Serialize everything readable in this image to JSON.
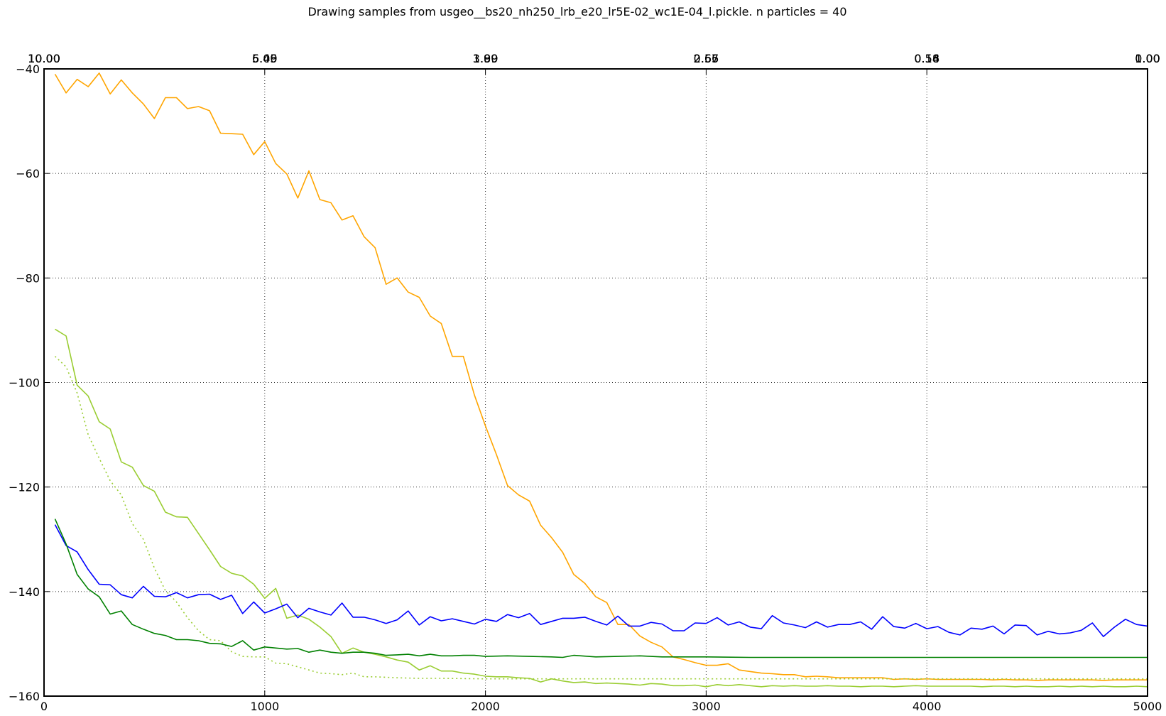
{
  "chart_data": {
    "type": "line",
    "title": "Drawing samples from usgeo__bs20_nh250_lrb_e20_lr5E-02_wc1E-04_l.pickle. n particles = 40",
    "xlabel": "",
    "ylabel": "",
    "xlim": [
      0,
      5000
    ],
    "ylim": [
      -160,
      -40
    ],
    "grid": true,
    "grid_style": "dotted",
    "x_ticks": [
      0,
      1000,
      2000,
      3000,
      4000,
      5000
    ],
    "y_ticks": [
      -160,
      -140,
      -120,
      -100,
      -80,
      -60,
      -40
    ],
    "top_axis": {
      "ticks": [
        {
          "x": 0,
          "labels": [
            "10.00",
            "10.00",
            "10.00"
          ]
        },
        {
          "x": 1000,
          "labels": [
            "5.49",
            "5.45",
            "6.00"
          ]
        },
        {
          "x": 2000,
          "labels": [
            "1.89",
            "1.99",
            "3.00"
          ]
        },
        {
          "x": 3000,
          "labels": [
            "2.67",
            "2.65",
            "0.56"
          ]
        },
        {
          "x": 4000,
          "labels": [
            "0.58",
            "0.56",
            "0.14"
          ]
        },
        {
          "x": 5000,
          "labels": [
            "1.00",
            "1.00",
            "0.00"
          ]
        }
      ]
    },
    "series": [
      {
        "name": "",
        "color": "#ffa500",
        "style": "solid",
        "x": [
          50,
          100,
          150,
          200,
          250,
          300,
          350,
          400,
          450,
          500,
          550,
          600,
          650,
          700,
          750,
          800,
          850,
          900,
          950,
          1000,
          1050,
          1100,
          1150,
          1200,
          1250,
          1300,
          1350,
          1400,
          1450,
          1500,
          1550,
          1600,
          1650,
          1700,
          1750,
          1800,
          1850,
          1900,
          1950,
          2000,
          2050,
          2100,
          2150,
          2200,
          2250,
          2300,
          2350,
          2400,
          2450,
          2500,
          2550,
          2600,
          2650,
          2700,
          2750,
          2800,
          2850,
          2900,
          2950,
          3000,
          3050,
          3100,
          3150,
          3200,
          3250,
          3300,
          3350,
          3400,
          3450,
          3500,
          3550,
          3600,
          3650,
          3700,
          3750,
          3800,
          3850,
          3900,
          3950,
          4000,
          4050,
          4100,
          4150,
          4200,
          4250,
          4300,
          4350,
          4400,
          4450,
          4500,
          4550,
          4600,
          4650,
          4700,
          4750,
          4800,
          4850,
          4900,
          4950,
          5000
        ],
        "y": [
          -41,
          -44.6,
          -42,
          -43.4,
          -40.8,
          -44.8,
          -42.1,
          -44.6,
          -46.7,
          -49.5,
          -45.5,
          -45.5,
          -47.6,
          -47.2,
          -48,
          -52.3,
          -52.4,
          -52.5,
          -56.4,
          -53.9,
          -58.1,
          -60.1,
          -64.7,
          -59.5,
          -65,
          -65.6,
          -68.9,
          -68.1,
          -72.1,
          -74.2,
          -81.2,
          -80,
          -82.7,
          -83.7,
          -87.3,
          -88.7,
          -95,
          -95,
          -102.4,
          -108.3,
          -113.8,
          -119.7,
          -121.5,
          -122.7,
          -127.3,
          -129.7,
          -132.5,
          -136.7,
          -138.4,
          -141,
          -142.1,
          -146.3,
          -146.3,
          -148.5,
          -149.7,
          -150.6,
          -152.5,
          -153,
          -153.6,
          -154.1,
          -154.1,
          -153.8,
          -155,
          -155.3,
          -155.6,
          -155.7,
          -155.9,
          -155.9,
          -156.3,
          -156.2,
          -156.3,
          -156.5,
          -156.5,
          -156.5,
          -156.5,
          -156.5,
          -156.8,
          -156.7,
          -156.8,
          -156.7,
          -156.8,
          -156.8,
          -156.8,
          -156.8,
          -156.8,
          -156.9,
          -156.8,
          -156.9,
          -156.9,
          -157,
          -156.9,
          -156.9,
          -156.9,
          -156.9,
          -156.9,
          -157,
          -156.9,
          -156.9,
          -156.9,
          -156.9
        ]
      },
      {
        "name": "",
        "color": "#9acd32",
        "style": "solid",
        "x": [
          50,
          100,
          150,
          200,
          250,
          300,
          350,
          400,
          450,
          500,
          550,
          600,
          650,
          700,
          750,
          800,
          850,
          900,
          950,
          1000,
          1050,
          1100,
          1150,
          1200,
          1250,
          1300,
          1350,
          1400,
          1450,
          1500,
          1550,
          1600,
          1650,
          1700,
          1750,
          1800,
          1850,
          1900,
          1950,
          2000,
          2050,
          2100,
          2150,
          2200,
          2250,
          2300,
          2350,
          2400,
          2450,
          2500,
          2550,
          2600,
          2650,
          2700,
          2750,
          2800,
          2850,
          2900,
          2950,
          3000,
          3050,
          3100,
          3150,
          3200,
          3250,
          3300,
          3350,
          3400,
          3450,
          3500,
          3550,
          3600,
          3650,
          3700,
          3750,
          3800,
          3850,
          3900,
          3950,
          4000,
          4050,
          4100,
          4150,
          4200,
          4250,
          4300,
          4350,
          4400,
          4450,
          4500,
          4550,
          4600,
          4650,
          4700,
          4750,
          4800,
          4850,
          4900,
          4950,
          5000
        ],
        "y": [
          -89.8,
          -91.1,
          -100.5,
          -102.6,
          -107.5,
          -108.9,
          -115.2,
          -116.2,
          -119.7,
          -120.8,
          -124.8,
          -125.7,
          -125.8,
          -128.9,
          -132,
          -135.2,
          -136.5,
          -137,
          -138.6,
          -141.3,
          -139.4,
          -145.1,
          -144.5,
          -145.3,
          -146.8,
          -148.6,
          -151.8,
          -150.8,
          -151.6,
          -152,
          -152.5,
          -153.1,
          -153.5,
          -155,
          -154.2,
          -155.2,
          -155.2,
          -155.6,
          -155.8,
          -156.2,
          -156.3,
          -156.3,
          -156.5,
          -156.6,
          -157.3,
          -156.7,
          -157.1,
          -157.4,
          -157.3,
          -157.6,
          -157.5,
          -157.6,
          -157.7,
          -157.9,
          -157.6,
          -157.7,
          -158,
          -158,
          -157.9,
          -158.2,
          -157.8,
          -158,
          -157.8,
          -158,
          -158.2,
          -158,
          -158.1,
          -158,
          -158.1,
          -158.1,
          -158,
          -158.1,
          -158.1,
          -158.2,
          -158.1,
          -158.1,
          -158.2,
          -158.1,
          -158,
          -158.1,
          -158.1,
          -158.1,
          -158.1,
          -158.1,
          -158.2,
          -158.1,
          -158.1,
          -158.2,
          -158.1,
          -158.2,
          -158.2,
          -158.1,
          -158.2,
          -158.1,
          -158.2,
          -158.1,
          -158.2,
          -158.2,
          -158.1,
          -158.2
        ]
      },
      {
        "name": "",
        "color": "#9acd32",
        "style": "dotted",
        "x": [
          50,
          100,
          150,
          200,
          250,
          300,
          350,
          400,
          450,
          500,
          550,
          600,
          650,
          700,
          750,
          800,
          850,
          900,
          950,
          1000,
          1050,
          1100,
          1150,
          1200,
          1250,
          1300,
          1350,
          1400,
          1450,
          1500,
          1600,
          1700,
          1800,
          2000,
          2200,
          2400,
          2600,
          2800,
          3000,
          3400,
          3800,
          4200,
          4600,
          5000
        ],
        "y": [
          -95,
          -97,
          -102,
          -110,
          -114.5,
          -118.8,
          -121.5,
          -127,
          -130,
          -135.5,
          -139.8,
          -142,
          -145,
          -147.5,
          -149.2,
          -149.4,
          -151.5,
          -152.4,
          -152.5,
          -152.5,
          -153.7,
          -153.8,
          -154.4,
          -155,
          -155.6,
          -155.7,
          -155.9,
          -155.6,
          -156.3,
          -156.3,
          -156.5,
          -156.6,
          -156.6,
          -156.7,
          -156.7,
          -156.7,
          -156.7,
          -156.7,
          -156.7,
          -156.7,
          -156.7,
          -156.7,
          -156.7,
          -156.7
        ]
      },
      {
        "name": "",
        "color": "#0000ff",
        "style": "solid",
        "x": [
          50,
          100,
          150,
          200,
          250,
          300,
          350,
          400,
          450,
          500,
          550,
          600,
          650,
          700,
          750,
          800,
          850,
          900,
          950,
          1000,
          1050,
          1100,
          1150,
          1200,
          1250,
          1300,
          1350,
          1400,
          1450,
          1500,
          1550,
          1600,
          1650,
          1700,
          1750,
          1800,
          1850,
          1900,
          1950,
          2000,
          2050,
          2100,
          2150,
          2200,
          2250,
          2300,
          2350,
          2400,
          2450,
          2500,
          2550,
          2600,
          2650,
          2700,
          2750,
          2800,
          2850,
          2900,
          2950,
          3000,
          3050,
          3100,
          3150,
          3200,
          3250,
          3300,
          3350,
          3400,
          3450,
          3500,
          3550,
          3600,
          3650,
          3700,
          3750,
          3800,
          3850,
          3900,
          3950,
          4000,
          4050,
          4100,
          4150,
          4200,
          4250,
          4300,
          4350,
          4400,
          4450,
          4500,
          4550,
          4600,
          4650,
          4700,
          4750,
          4800,
          4850,
          4900,
          4950,
          5000
        ],
        "y": [
          -127.2,
          -131.2,
          -132.4,
          -135.8,
          -138.6,
          -138.7,
          -140.6,
          -141.2,
          -139,
          -140.9,
          -141,
          -140.2,
          -141.2,
          -140.6,
          -140.5,
          -141.5,
          -140.7,
          -144.2,
          -142,
          -144.1,
          -143.3,
          -142.4,
          -145,
          -143.2,
          -143.9,
          -144.5,
          -142.2,
          -144.9,
          -144.9,
          -145.4,
          -146.1,
          -145.4,
          -143.7,
          -146.4,
          -144.8,
          -145.6,
          -145.2,
          -145.7,
          -146.2,
          -145.3,
          -145.7,
          -144.4,
          -145,
          -144.2,
          -146.3,
          -145.7,
          -145.1,
          -145.1,
          -144.9,
          -145.7,
          -146.4,
          -144.7,
          -146.6,
          -146.6,
          -145.9,
          -146.2,
          -147.5,
          -147.5,
          -146,
          -146.1,
          -145,
          -146.4,
          -145.8,
          -146.8,
          -147.1,
          -144.6,
          -146,
          -146.4,
          -146.9,
          -145.8,
          -146.8,
          -146.3,
          -146.3,
          -145.8,
          -147.2,
          -144.8,
          -146.7,
          -147,
          -146.1,
          -147.1,
          -146.7,
          -147.8,
          -148.3,
          -147,
          -147.2,
          -146.6,
          -148.1,
          -146.4,
          -146.5,
          -148.3,
          -147.6,
          -148.1,
          -147.9,
          -147.4,
          -146,
          -148.6,
          -146.8,
          -145.3,
          -146.3,
          -146.6
        ]
      },
      {
        "name": "",
        "color": "#008000",
        "style": "solid",
        "x": [
          50,
          100,
          150,
          200,
          250,
          300,
          350,
          400,
          450,
          500,
          550,
          600,
          650,
          700,
          750,
          800,
          850,
          900,
          950,
          1000,
          1050,
          1100,
          1150,
          1200,
          1250,
          1300,
          1350,
          1400,
          1450,
          1500,
          1550,
          1600,
          1650,
          1700,
          1750,
          1800,
          1850,
          1900,
          1950,
          2000,
          2100,
          2200,
          2300,
          2350,
          2400,
          2500,
          2600,
          2700,
          2800,
          2900,
          3000,
          3200,
          3400,
          3600,
          3800,
          4000,
          4200,
          4400,
          4600,
          4800,
          5000
        ],
        "y": [
          -126.1,
          -130.9,
          -136.7,
          -139.5,
          -141,
          -144.3,
          -143.7,
          -146.3,
          -147.2,
          -148,
          -148.4,
          -149.2,
          -149.2,
          -149.4,
          -149.9,
          -150,
          -150.5,
          -149.4,
          -151.2,
          -150.6,
          -150.8,
          -151,
          -150.9,
          -151.6,
          -151.2,
          -151.6,
          -151.8,
          -151.6,
          -151.6,
          -151.8,
          -152.2,
          -152.1,
          -152,
          -152.3,
          -152,
          -152.3,
          -152.3,
          -152.2,
          -152.2,
          -152.4,
          -152.3,
          -152.4,
          -152.5,
          -152.6,
          -152.2,
          -152.5,
          -152.4,
          -152.3,
          -152.5,
          -152.5,
          -152.5,
          -152.6,
          -152.6,
          -152.6,
          -152.6,
          -152.6,
          -152.6,
          -152.6,
          -152.6,
          -152.6,
          -152.6
        ]
      }
    ]
  }
}
